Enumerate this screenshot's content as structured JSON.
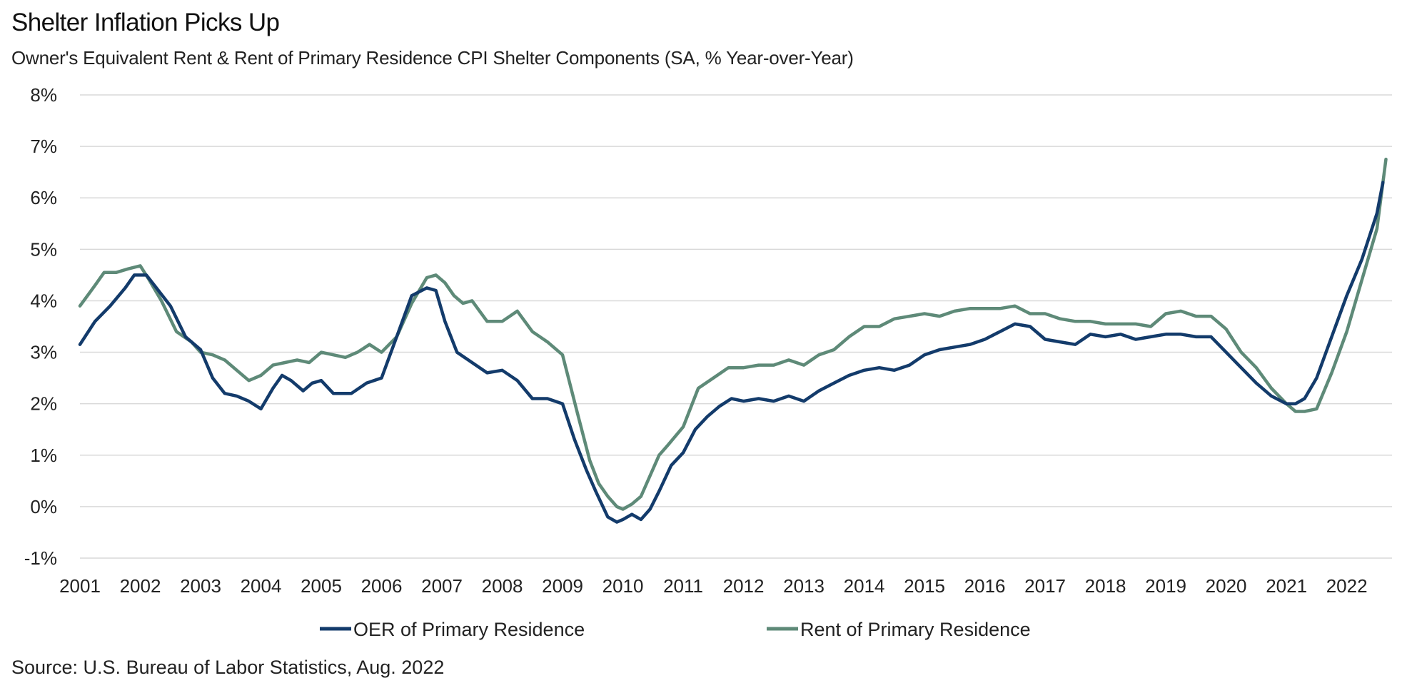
{
  "title": "Shelter Inflation Picks Up",
  "subtitle": "Owner's Equivalent Rent & Rent of Primary Residence CPI Shelter Components (SA, % Year-over-Year)",
  "source": "Source: U.S. Bureau of Labor Statistics, Aug. 2022",
  "colors": {
    "oer": "#133b6b",
    "rent": "#5e8a78",
    "grid": "#d9d9d9"
  },
  "chart_data": {
    "type": "line",
    "title": "Shelter Inflation Picks Up",
    "xlabel": "",
    "ylabel": "",
    "ylim": [
      -1,
      8
    ],
    "xlim": [
      2001.0,
      2022.75
    ],
    "grid": true,
    "legend_position": "bottom",
    "y_ticks": [
      "-1%",
      "0%",
      "1%",
      "2%",
      "3%",
      "4%",
      "5%",
      "6%",
      "7%",
      "8%"
    ],
    "y_tick_values": [
      -1,
      0,
      1,
      2,
      3,
      4,
      5,
      6,
      7,
      8
    ],
    "x_ticks": [
      "2001",
      "2002",
      "2003",
      "2004",
      "2005",
      "2006",
      "2007",
      "2008",
      "2009",
      "2010",
      "2011",
      "2012",
      "2013",
      "2014",
      "2015",
      "2016",
      "2017",
      "2018",
      "2019",
      "2020",
      "2021",
      "2022"
    ],
    "x_tick_values": [
      2001,
      2002,
      2003,
      2004,
      2005,
      2006,
      2007,
      2008,
      2009,
      2010,
      2011,
      2012,
      2013,
      2014,
      2015,
      2016,
      2017,
      2018,
      2019,
      2020,
      2021,
      2022
    ],
    "series": [
      {
        "name": "OER of Primary Residence",
        "color": "#133b6b",
        "x": [
          2001.0,
          2001.25,
          2001.5,
          2001.75,
          2001.9,
          2002.1,
          2002.3,
          2002.5,
          2002.75,
          2003.0,
          2003.2,
          2003.4,
          2003.6,
          2003.8,
          2004.0,
          2004.2,
          2004.35,
          2004.5,
          2004.7,
          2004.85,
          2005.0,
          2005.2,
          2005.35,
          2005.5,
          2005.75,
          2006.0,
          2006.25,
          2006.5,
          2006.75,
          2006.9,
          2007.05,
          2007.25,
          2007.5,
          2007.75,
          2008.0,
          2008.25,
          2008.5,
          2008.75,
          2009.0,
          2009.2,
          2009.4,
          2009.55,
          2009.75,
          2009.9,
          2010.0,
          2010.15,
          2010.3,
          2010.45,
          2010.6,
          2010.8,
          2011.0,
          2011.2,
          2011.4,
          2011.6,
          2011.8,
          2012.0,
          2012.25,
          2012.5,
          2012.75,
          2013.0,
          2013.25,
          2013.5,
          2013.75,
          2014.0,
          2014.25,
          2014.5,
          2014.75,
          2015.0,
          2015.25,
          2015.5,
          2015.75,
          2016.0,
          2016.25,
          2016.5,
          2016.75,
          2017.0,
          2017.25,
          2017.5,
          2017.75,
          2018.0,
          2018.25,
          2018.5,
          2018.75,
          2019.0,
          2019.25,
          2019.5,
          2019.75,
          2020.0,
          2020.25,
          2020.5,
          2020.75,
          2021.0,
          2021.15,
          2021.3,
          2021.5,
          2021.75,
          2022.0,
          2022.25,
          2022.5,
          2022.6
        ],
        "values": [
          3.15,
          3.6,
          3.9,
          4.25,
          4.5,
          4.5,
          4.2,
          3.9,
          3.3,
          3.05,
          2.5,
          2.2,
          2.15,
          2.05,
          1.9,
          2.3,
          2.55,
          2.45,
          2.25,
          2.4,
          2.45,
          2.2,
          2.2,
          2.2,
          2.4,
          2.5,
          3.3,
          4.1,
          4.25,
          4.2,
          3.6,
          3.0,
          2.8,
          2.6,
          2.65,
          2.45,
          2.1,
          2.1,
          2.0,
          1.3,
          0.7,
          0.3,
          -0.2,
          -0.3,
          -0.25,
          -0.15,
          -0.25,
          -0.05,
          0.3,
          0.8,
          1.05,
          1.5,
          1.75,
          1.95,
          2.1,
          2.05,
          2.1,
          2.05,
          2.15,
          2.05,
          2.25,
          2.4,
          2.55,
          2.65,
          2.7,
          2.65,
          2.75,
          2.95,
          3.05,
          3.1,
          3.15,
          3.25,
          3.4,
          3.55,
          3.5,
          3.25,
          3.2,
          3.15,
          3.35,
          3.3,
          3.35,
          3.25,
          3.3,
          3.35,
          3.35,
          3.3,
          3.3,
          3.0,
          2.7,
          2.4,
          2.15,
          2.0,
          2.0,
          2.1,
          2.5,
          3.3,
          4.1,
          4.8,
          5.7,
          6.3
        ]
      },
      {
        "name": "Rent of Primary Residence",
        "color": "#5e8a78",
        "x": [
          2001.0,
          2001.25,
          2001.4,
          2001.6,
          2001.8,
          2002.0,
          2002.15,
          2002.35,
          2002.6,
          2002.85,
          2003.0,
          2003.2,
          2003.4,
          2003.6,
          2003.8,
          2004.0,
          2004.2,
          2004.4,
          2004.6,
          2004.8,
          2005.0,
          2005.2,
          2005.4,
          2005.6,
          2005.8,
          2006.0,
          2006.25,
          2006.5,
          2006.75,
          2006.9,
          2007.05,
          2007.2,
          2007.35,
          2007.5,
          2007.75,
          2008.0,
          2008.25,
          2008.5,
          2008.75,
          2009.0,
          2009.25,
          2009.45,
          2009.6,
          2009.75,
          2009.9,
          2010.0,
          2010.15,
          2010.3,
          2010.45,
          2010.6,
          2010.75,
          2011.0,
          2011.25,
          2011.5,
          2011.75,
          2012.0,
          2012.25,
          2012.5,
          2012.75,
          2013.0,
          2013.25,
          2013.5,
          2013.75,
          2014.0,
          2014.25,
          2014.5,
          2014.75,
          2015.0,
          2015.25,
          2015.5,
          2015.75,
          2016.0,
          2016.25,
          2016.5,
          2016.75,
          2017.0,
          2017.25,
          2017.5,
          2017.75,
          2018.0,
          2018.25,
          2018.5,
          2018.75,
          2019.0,
          2019.25,
          2019.5,
          2019.75,
          2020.0,
          2020.25,
          2020.5,
          2020.75,
          2021.0,
          2021.15,
          2021.3,
          2021.5,
          2021.75,
          2022.0,
          2022.25,
          2022.5,
          2022.65
        ],
        "values": [
          3.9,
          4.3,
          4.55,
          4.55,
          4.62,
          4.68,
          4.4,
          4.0,
          3.4,
          3.2,
          3.0,
          2.95,
          2.85,
          2.65,
          2.45,
          2.55,
          2.75,
          2.8,
          2.85,
          2.8,
          3.0,
          2.95,
          2.9,
          3.0,
          3.15,
          3.0,
          3.3,
          3.95,
          4.45,
          4.5,
          4.35,
          4.1,
          3.95,
          4.0,
          3.6,
          3.6,
          3.8,
          3.4,
          3.2,
          2.95,
          1.8,
          0.9,
          0.45,
          0.2,
          0.0,
          -0.05,
          0.05,
          0.2,
          0.6,
          1.0,
          1.2,
          1.55,
          2.3,
          2.5,
          2.7,
          2.7,
          2.75,
          2.75,
          2.85,
          2.75,
          2.95,
          3.05,
          3.3,
          3.5,
          3.5,
          3.65,
          3.7,
          3.75,
          3.7,
          3.8,
          3.85,
          3.85,
          3.85,
          3.9,
          3.75,
          3.75,
          3.65,
          3.6,
          3.6,
          3.55,
          3.55,
          3.55,
          3.5,
          3.75,
          3.8,
          3.7,
          3.7,
          3.45,
          3.0,
          2.7,
          2.3,
          2.0,
          1.85,
          1.85,
          1.9,
          2.6,
          3.4,
          4.4,
          5.4,
          6.75
        ]
      }
    ]
  }
}
